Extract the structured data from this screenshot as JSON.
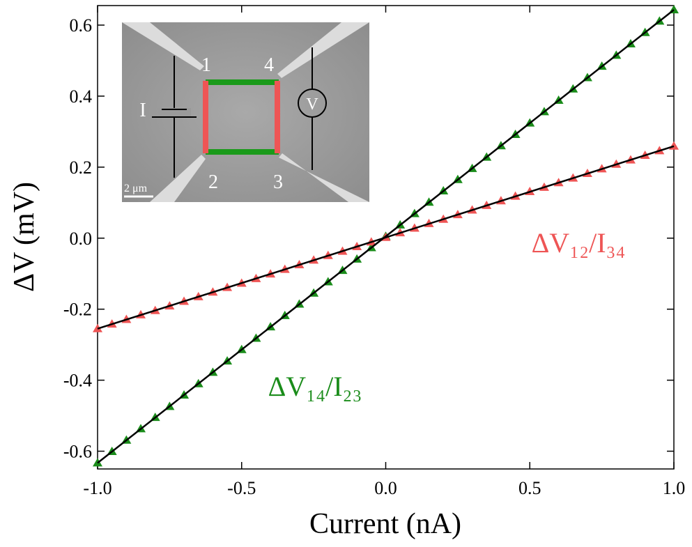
{
  "chart_data": {
    "type": "scatter",
    "x_label": "Current (nA)",
    "y_label": "ΔV (mV)",
    "xlim": [
      -1,
      1
    ],
    "ylim": [
      -0.65,
      0.655
    ],
    "xticks": [
      {
        "value": -1,
        "label": "-1.0"
      },
      -0.5,
      {
        "value": 0,
        "label": "0.0"
      },
      0.5,
      {
        "value": 1,
        "label": "1.0"
      }
    ],
    "yticks": [
      -0.6,
      -0.4,
      -0.2,
      {
        "value": 0,
        "label": "0.0"
      },
      0.2,
      0.4,
      0.6
    ],
    "x": [
      -1,
      -0.95,
      -0.9,
      -0.85,
      -0.8,
      -0.75,
      -0.7,
      -0.65,
      -0.6,
      -0.55,
      -0.5,
      -0.45,
      -0.4,
      -0.35,
      -0.3,
      -0.25,
      -0.2,
      -0.15,
      -0.1,
      -0.05,
      0,
      0.05,
      0.1,
      0.15,
      0.2,
      0.25,
      0.3,
      0.35,
      0.4,
      0.45,
      0.5,
      0.55,
      0.6,
      0.65,
      0.7,
      0.75,
      0.8,
      0.85,
      0.9,
      0.95,
      1
    ],
    "series": [
      {
        "name": "ΔV₁₄/I₂₃",
        "color": "#1a8c1a",
        "values": [
          -0.633,
          -0.601,
          -0.569,
          -0.537,
          -0.505,
          -0.474,
          -0.442,
          -0.41,
          -0.378,
          -0.346,
          -0.314,
          -0.282,
          -0.25,
          -0.218,
          -0.186,
          -0.155,
          -0.123,
          -0.091,
          -0.059,
          -0.027,
          0.005,
          0.037,
          0.069,
          0.101,
          0.133,
          0.165,
          0.196,
          0.228,
          0.26,
          0.292,
          0.324,
          0.356,
          0.388,
          0.42,
          0.452,
          0.484,
          0.515,
          0.547,
          0.579,
          0.611,
          0.643
        ]
      },
      {
        "name": "ΔV₁₂/I₃₄",
        "color": "#ee5555",
        "values": [
          -0.255,
          -0.242,
          -0.229,
          -0.216,
          -0.204,
          -0.191,
          -0.178,
          -0.165,
          -0.152,
          -0.139,
          -0.127,
          -0.114,
          -0.101,
          -0.088,
          -0.075,
          -0.062,
          -0.049,
          -0.037,
          -0.024,
          -0.011,
          0.002,
          0.015,
          0.028,
          0.041,
          0.053,
          0.066,
          0.079,
          0.092,
          0.105,
          0.118,
          0.131,
          0.143,
          0.156,
          0.169,
          0.182,
          0.195,
          0.208,
          0.22,
          0.233,
          0.246,
          0.259
        ]
      }
    ],
    "fits": [
      {
        "color": "#000000",
        "x": [
          -1,
          1
        ],
        "values": [
          -0.633,
          0.643
        ]
      },
      {
        "color": "#000000",
        "x": [
          -1,
          1
        ],
        "values": [
          -0.255,
          0.259
        ]
      }
    ],
    "inset": {
      "contacts": [
        "1",
        "2",
        "3",
        "4"
      ],
      "current_label": "I",
      "voltage_label": "V",
      "scale_bar": "2 μm"
    }
  }
}
